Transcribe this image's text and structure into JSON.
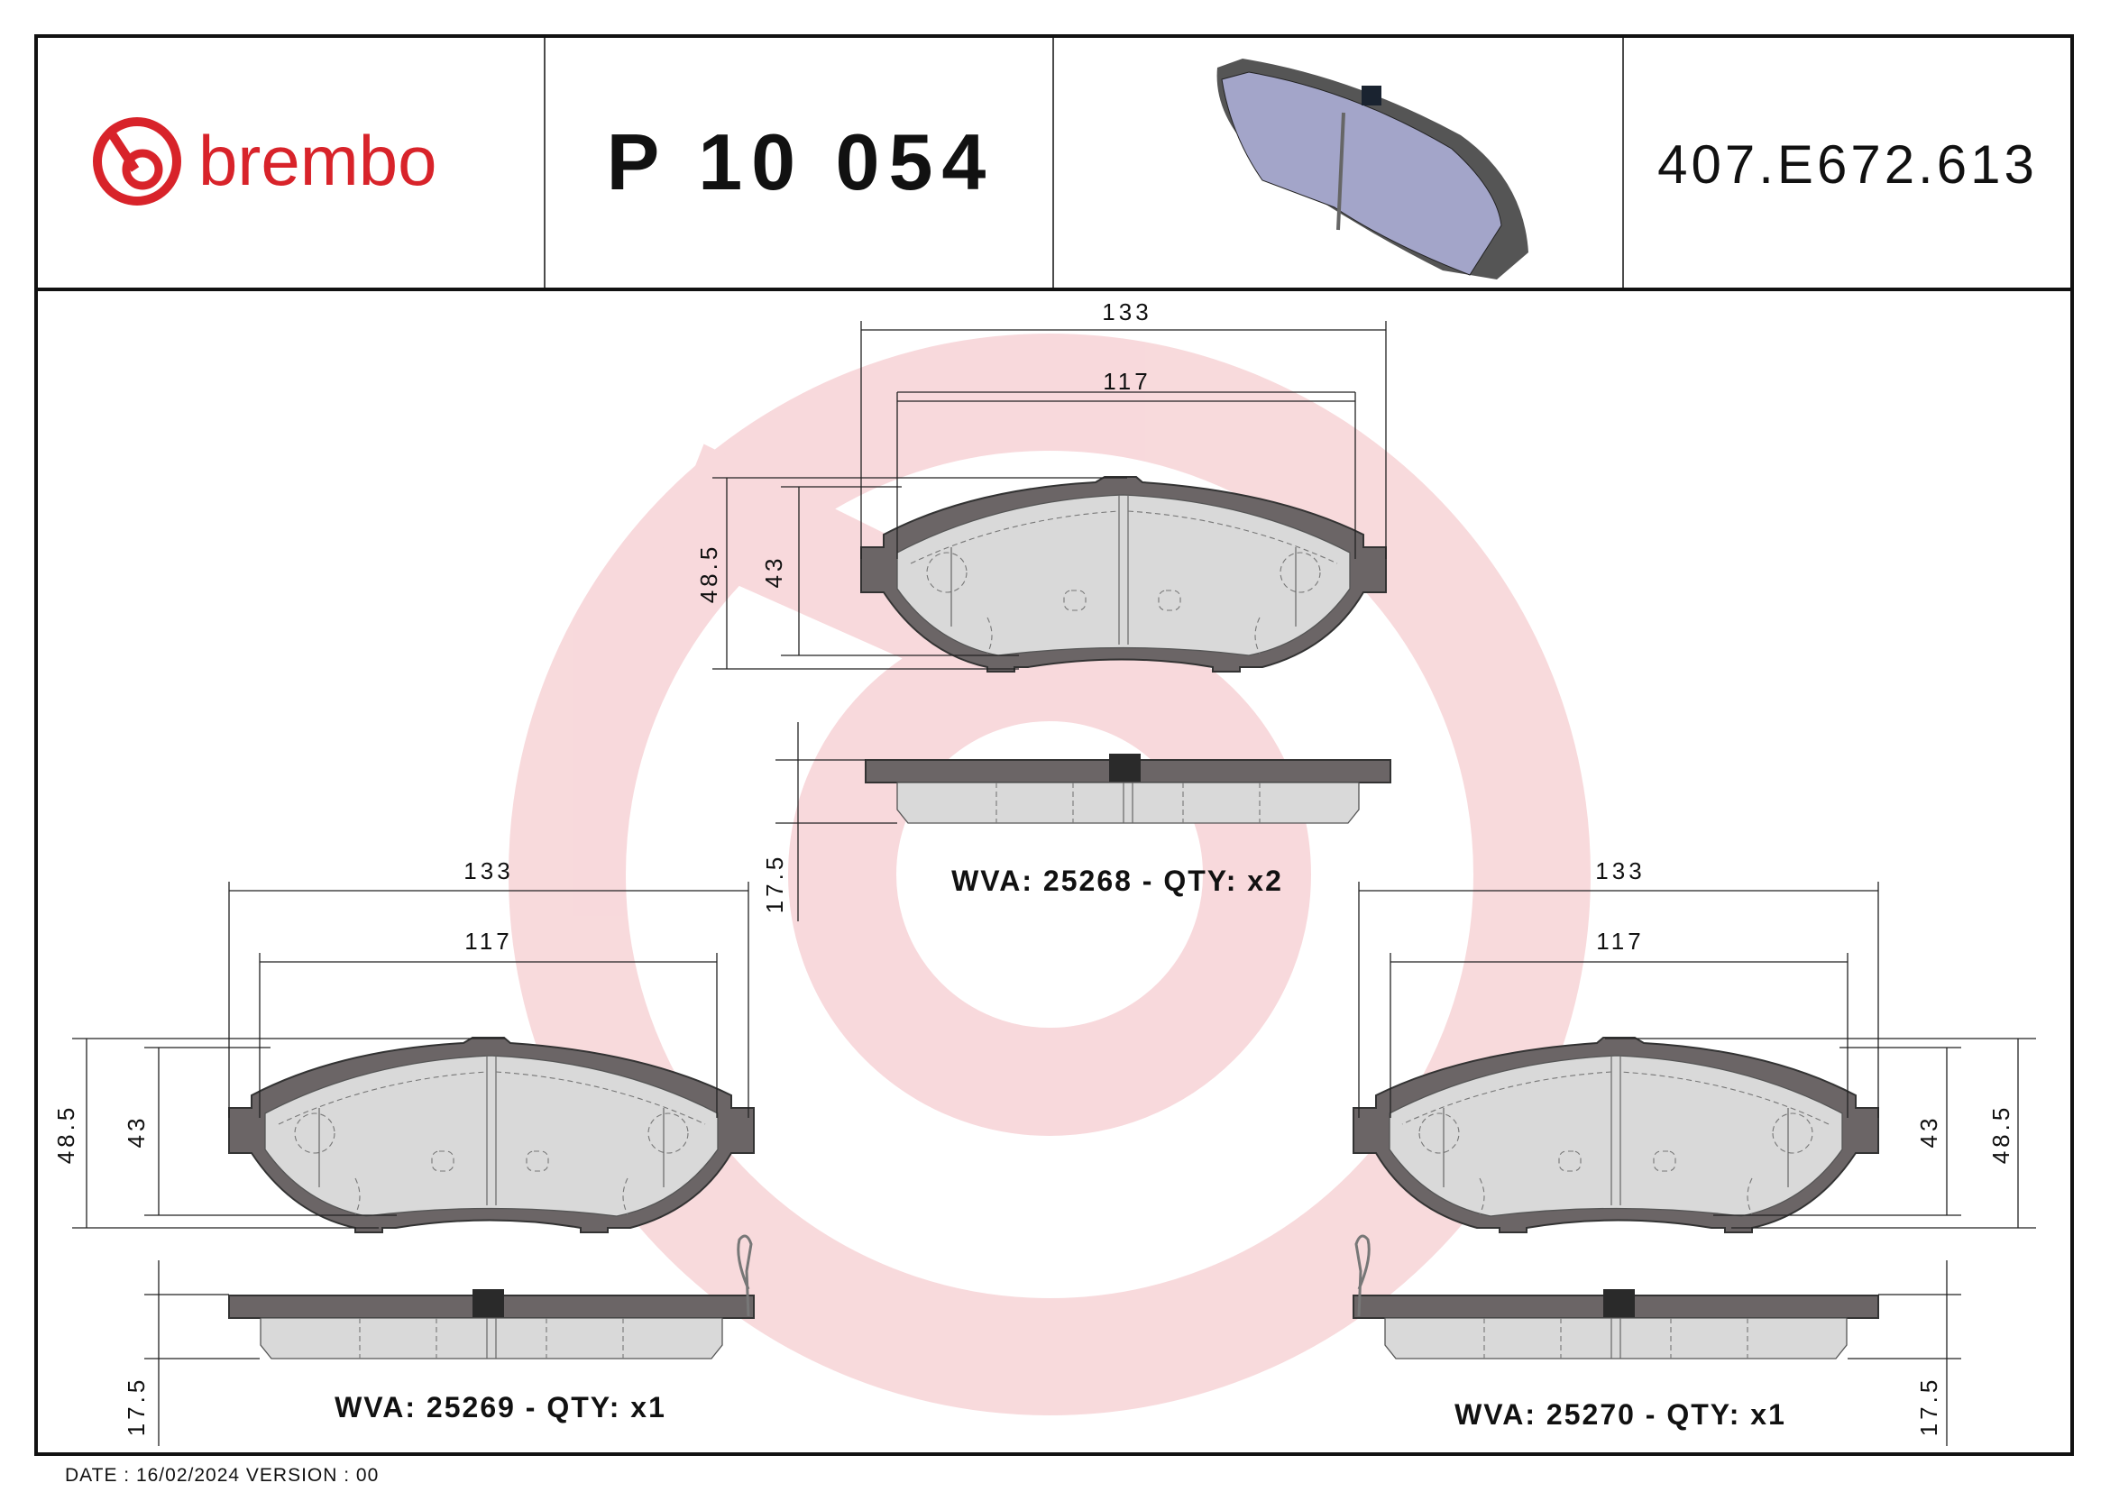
{
  "header": {
    "brand": "brembo",
    "part_number": "P 10 054",
    "reference_code": "407.E672.613"
  },
  "colors": {
    "brand_red": "#d8232a",
    "watermark": "#f7d3d6",
    "pad_3d": "#a3a5c9",
    "backing_plate": "#6b6566",
    "lining": "#d9d9d9"
  },
  "pads": [
    {
      "overall_width": "133",
      "lining_width": "117",
      "overall_height": "48.5",
      "lining_height": "43",
      "thickness": "17.5",
      "label": "WVA: 25268 - QTY: x2"
    },
    {
      "overall_width": "133",
      "lining_width": "117",
      "overall_height": "48.5",
      "lining_height": "43",
      "thickness": "17.5",
      "label": "WVA: 25269 - QTY: x1"
    },
    {
      "overall_width": "133",
      "lining_width": "117",
      "overall_height": "48.5",
      "lining_height": "43",
      "thickness": "17.5",
      "label": "WVA: 25270 - QTY: x1"
    }
  ],
  "footer": {
    "date_version": "DATE : 16/02/2024 VERSION : 00"
  }
}
